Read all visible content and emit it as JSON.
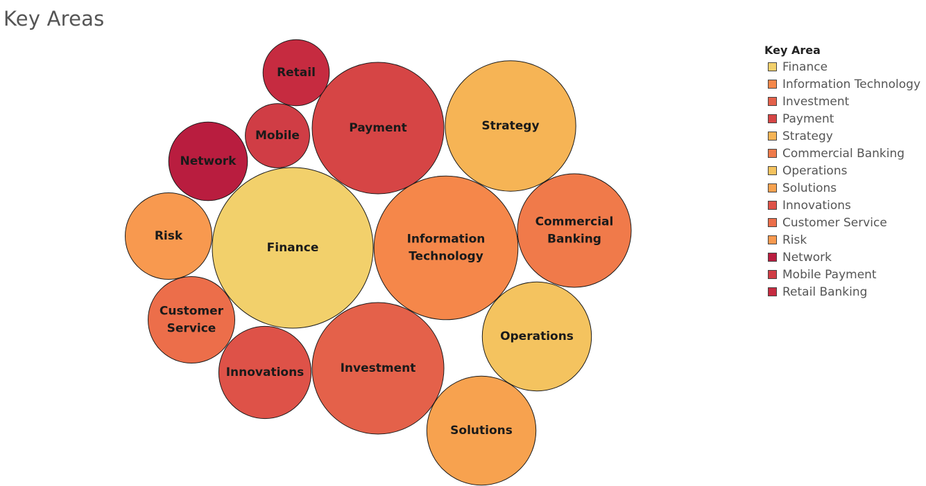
{
  "title": "Key Areas",
  "legend": {
    "title": "Key Area",
    "items": [
      {
        "label": "Finance",
        "color": "#F2D06B"
      },
      {
        "label": "Information Technology",
        "color": "#F5874A"
      },
      {
        "label": "Investment",
        "color": "#E4614A"
      },
      {
        "label": "Payment",
        "color": "#D64545"
      },
      {
        "label": "Strategy",
        "color": "#F6B455"
      },
      {
        "label": "Commercial Banking",
        "color": "#F07A4A"
      },
      {
        "label": "Operations",
        "color": "#F4C35F"
      },
      {
        "label": "Solutions",
        "color": "#F7A24F"
      },
      {
        "label": "Innovations",
        "color": "#DE5248"
      },
      {
        "label": "Customer Service",
        "color": "#EC6E4A"
      },
      {
        "label": "Risk",
        "color": "#F8994F"
      },
      {
        "label": "Network",
        "color": "#B91D3F"
      },
      {
        "label": "Mobile Payment",
        "color": "#D03D45"
      },
      {
        "label": "Retail Banking",
        "color": "#C62B40"
      }
    ]
  },
  "chart_data": {
    "type": "bubble",
    "title": "Key Areas",
    "legend_title": "Key Area",
    "legend_position": "right",
    "size_values_relative": true,
    "items": [
      {
        "key_area": "Finance",
        "label_lines": [
          "Finance"
        ],
        "size": 100
      },
      {
        "key_area": "Information Technology",
        "label_lines": [
          "Information",
          "Technology"
        ],
        "size": 80
      },
      {
        "key_area": "Investment",
        "label_lines": [
          "Investment"
        ],
        "size": 67
      },
      {
        "key_area": "Payment",
        "label_lines": [
          "Payment"
        ],
        "size": 67
      },
      {
        "key_area": "Strategy",
        "label_lines": [
          "Strategy"
        ],
        "size": 66
      },
      {
        "key_area": "Commercial Banking",
        "label_lines": [
          "Commercial",
          "Banking"
        ],
        "size": 50
      },
      {
        "key_area": "Operations",
        "label_lines": [
          "Operations"
        ],
        "size": 46
      },
      {
        "key_area": "Solutions",
        "label_lines": [
          "Solutions"
        ],
        "size": 46
      },
      {
        "key_area": "Innovations",
        "label_lines": [
          "Innovations"
        ],
        "size": 33
      },
      {
        "key_area": "Customer Service",
        "label_lines": [
          "Customer",
          "Service"
        ],
        "size": 29
      },
      {
        "key_area": "Risk",
        "label_lines": [
          "Risk"
        ],
        "size": 29
      },
      {
        "key_area": "Network",
        "label_lines": [
          "Network"
        ],
        "size": 24
      },
      {
        "key_area": "Mobile Payment",
        "label_lines": [
          "Mobile"
        ],
        "size": 16
      },
      {
        "key_area": "Retail Banking",
        "label_lines": [
          "Retail"
        ],
        "size": 17
      }
    ]
  }
}
